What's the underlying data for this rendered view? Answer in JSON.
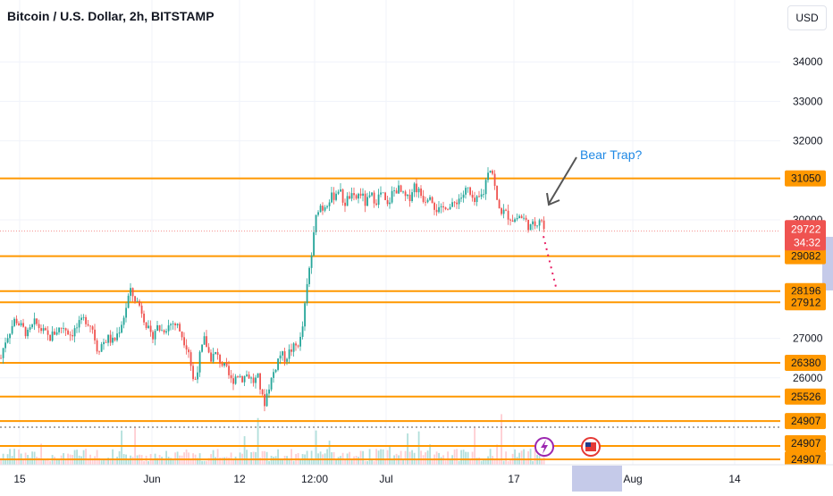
{
  "header": {
    "title": "Bitcoin / U.S. Dollar, 2h, BITSTAMP",
    "currency_label": "USD"
  },
  "chart_data": {
    "type": "candlestick",
    "yaxis": {
      "min": 24000,
      "max": 35000,
      "ticks": [
        26000,
        27000,
        30000,
        32000,
        33000,
        34000
      ]
    },
    "xaxis": {
      "tick_labels": [
        "15",
        "Jun",
        "12",
        "12:00",
        "Jul",
        "17",
        "Aug",
        "14"
      ]
    },
    "grid": true,
    "levels": [
      {
        "label": "31050",
        "value": 31050
      },
      {
        "label": "29082",
        "value": 29082
      },
      {
        "label": "28196",
        "value": 28196
      },
      {
        "label": "27912",
        "value": 27912
      },
      {
        "label": "26380",
        "value": 26380
      },
      {
        "label": "25526",
        "value": 25526
      },
      {
        "label": "24907",
        "value": 24907
      },
      {
        "label": "24907",
        "value": 24907
      },
      {
        "label": "24907",
        "value": 24907
      }
    ],
    "current_price": {
      "label": "29722",
      "value": 29722,
      "countdown": "34:32"
    },
    "annotation": {
      "text": "Bear Trap?"
    },
    "price_path": [
      [
        0,
        26500
      ],
      [
        4,
        26900
      ],
      [
        10,
        27200
      ],
      [
        16,
        27500
      ],
      [
        22,
        27300
      ],
      [
        30,
        27100
      ],
      [
        38,
        27400
      ],
      [
        46,
        27200
      ],
      [
        54,
        27000
      ],
      [
        62,
        27200
      ],
      [
        70,
        27300
      ],
      [
        78,
        27100
      ],
      [
        86,
        27300
      ],
      [
        94,
        27500
      ],
      [
        102,
        27300
      ],
      [
        108,
        26700
      ],
      [
        114,
        26900
      ],
      [
        120,
        27000
      ],
      [
        126,
        26900
      ],
      [
        132,
        27200
      ],
      [
        138,
        27600
      ],
      [
        144,
        28200
      ],
      [
        150,
        28000
      ],
      [
        156,
        27800
      ],
      [
        162,
        27400
      ],
      [
        168,
        27000
      ],
      [
        174,
        27300
      ],
      [
        180,
        27200
      ],
      [
        186,
        27300
      ],
      [
        192,
        27400
      ],
      [
        198,
        27300
      ],
      [
        204,
        27000
      ],
      [
        210,
        26700
      ],
      [
        216,
        25800
      ],
      [
        222,
        26500
      ],
      [
        228,
        27000
      ],
      [
        234,
        26500
      ],
      [
        240,
        26600
      ],
      [
        246,
        26400
      ],
      [
        252,
        26200
      ],
      [
        258,
        25900
      ],
      [
        264,
        26100
      ],
      [
        270,
        26000
      ],
      [
        276,
        26100
      ],
      [
        282,
        25900
      ],
      [
        288,
        26000
      ],
      [
        294,
        25300
      ],
      [
        300,
        25800
      ],
      [
        306,
        26200
      ],
      [
        312,
        26600
      ],
      [
        318,
        26500
      ],
      [
        324,
        26700
      ],
      [
        330,
        26800
      ],
      [
        336,
        27000
      ],
      [
        340,
        27800
      ],
      [
        344,
        28600
      ],
      [
        348,
        29200
      ],
      [
        352,
        30000
      ],
      [
        356,
        30400
      ],
      [
        360,
        30300
      ],
      [
        366,
        30500
      ],
      [
        372,
        30600
      ],
      [
        378,
        30800
      ],
      [
        384,
        30400
      ],
      [
        390,
        30600
      ],
      [
        396,
        30500
      ],
      [
        402,
        30700
      ],
      [
        408,
        30400
      ],
      [
        414,
        30600
      ],
      [
        420,
        30500
      ],
      [
        426,
        30700
      ],
      [
        432,
        30300
      ],
      [
        438,
        30700
      ],
      [
        444,
        30800
      ],
      [
        450,
        30600
      ],
      [
        456,
        30500
      ],
      [
        462,
        30900
      ],
      [
        468,
        30700
      ],
      [
        474,
        30500
      ],
      [
        480,
        30700
      ],
      [
        486,
        30300
      ],
      [
        492,
        30200
      ],
      [
        498,
        30400
      ],
      [
        504,
        30300
      ],
      [
        510,
        30500
      ],
      [
        516,
        30600
      ],
      [
        522,
        30800
      ],
      [
        528,
        30400
      ],
      [
        534,
        30500
      ],
      [
        540,
        30700
      ],
      [
        546,
        31400
      ],
      [
        550,
        31200
      ],
      [
        556,
        30300
      ],
      [
        562,
        30200
      ],
      [
        568,
        30100
      ],
      [
        574,
        30000
      ],
      [
        580,
        30100
      ],
      [
        586,
        30000
      ],
      [
        592,
        29800
      ],
      [
        598,
        29900
      ],
      [
        604,
        30100
      ],
      [
        608,
        29722
      ]
    ],
    "projection": [
      [
        608,
        29722
      ],
      [
        622,
        28300
      ]
    ]
  }
}
